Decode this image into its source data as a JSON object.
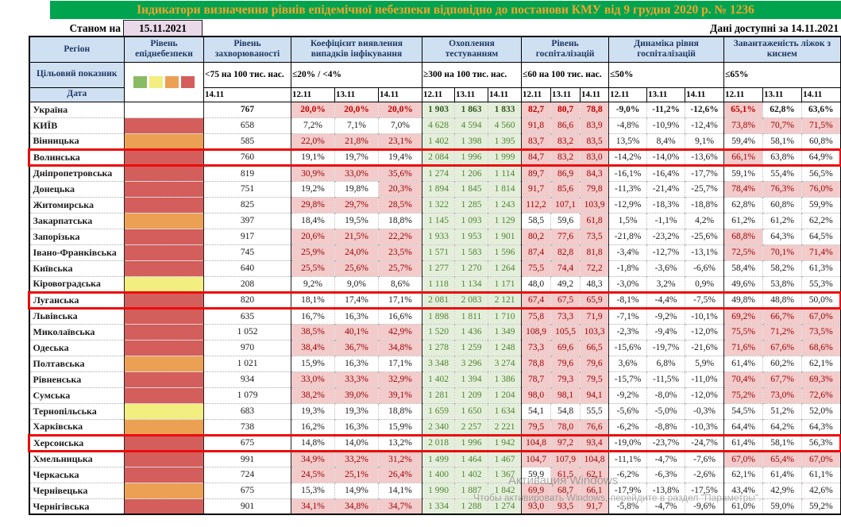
{
  "title": "Індикатори визначення рівнів епідемічної небезпеки відповідно до постанови КМУ від 9 грудня 2020 р. № 1236",
  "as_of": {
    "label": "Станом на",
    "date": "15.11.2021"
  },
  "data_available": "Дані доступні за 14.11.2021",
  "header": {
    "region": "Регіон",
    "target": "Цільовий показник",
    "date": "Дата",
    "danger": "Рівень епіднебезпеки",
    "groups": [
      {
        "key": "inc",
        "name": "Рівень захворюваності",
        "target": "<75 на 100 тис. нас.",
        "dates": [
          "14.11"
        ]
      },
      {
        "key": "det",
        "name": "Коефіцієнт виявлення випадків інфікування",
        "target": "≤20% / <4%",
        "dates": [
          "12.11",
          "13.11",
          "14.11"
        ]
      },
      {
        "key": "test",
        "name": "Охоплення тестуванням",
        "target": "≥300 на 100 тис. нас.",
        "dates": [
          "12.11",
          "13.11",
          "14.11"
        ]
      },
      {
        "key": "hosp",
        "name": "Рівень госпіталізацій",
        "target": "≤60 на 100 тис. нас.",
        "dates": [
          "12.11",
          "13.11",
          "14.11"
        ]
      },
      {
        "key": "dyn",
        "name": "Динаміка рівня госпіталізацій",
        "target": "≤50%",
        "dates": [
          "12.11",
          "13.11",
          "14.11"
        ]
      },
      {
        "key": "oxy",
        "name": "Завантаженість ліжок з киснем",
        "target": "≤65%",
        "dates": [
          "12.11",
          "13.11",
          "14.11"
        ]
      }
    ]
  },
  "legend": {
    "order": [
      "green",
      "yellow",
      "orange",
      "red"
    ],
    "colors": {
      "green": "#8ABB64",
      "yellow": "#F2EE7F",
      "orange": "#ECA054",
      "red": "#D45E5C",
      "none": "transparent"
    }
  },
  "regions": [
    {
      "name": "Україна",
      "level": "none",
      "bold": true,
      "hl": false,
      "inc": "767",
      "det": [
        "20,0%",
        "20,0%",
        "20,0%"
      ],
      "detA": [
        1,
        1,
        1
      ],
      "test": [
        "1 903",
        "1 863",
        "1 833"
      ],
      "hosp": [
        "82,7",
        "80,7",
        "78,8"
      ],
      "hospA": [
        1,
        1,
        1
      ],
      "dyn": [
        "-9,0%",
        "-11,2%",
        "-12,6%"
      ],
      "oxy": [
        "65,1%",
        "62,8%",
        "63,6%"
      ],
      "oxyA": [
        1,
        0,
        0
      ]
    },
    {
      "name": "КИЇВ",
      "level": "red",
      "bold": false,
      "hl": false,
      "inc": "658",
      "det": [
        "7,2%",
        "7,1%",
        "7,0%"
      ],
      "detA": [
        0,
        0,
        0
      ],
      "test": [
        "4 628",
        "4 594",
        "4 560"
      ],
      "hosp": [
        "91,8",
        "86,6",
        "83,9"
      ],
      "hospA": [
        1,
        1,
        1
      ],
      "dyn": [
        "-4,8%",
        "-10,9%",
        "-12,4%"
      ],
      "oxy": [
        "73,8%",
        "70,7%",
        "71,5%"
      ],
      "oxyA": [
        1,
        1,
        1
      ]
    },
    {
      "name": "Вінницька",
      "level": "orange",
      "bold": false,
      "hl": false,
      "inc": "585",
      "det": [
        "22,0%",
        "21,8%",
        "23,1%"
      ],
      "detA": [
        1,
        1,
        1
      ],
      "test": [
        "1 402",
        "1 398",
        "1 395"
      ],
      "hosp": [
        "83,7",
        "83,2",
        "83,5"
      ],
      "hospA": [
        1,
        1,
        1
      ],
      "dyn": [
        "13,5%",
        "8,4%",
        "9,1%"
      ],
      "oxy": [
        "59,4%",
        "58,1%",
        "60,8%"
      ],
      "oxyA": [
        0,
        0,
        0
      ]
    },
    {
      "name": "Волинська",
      "level": "red",
      "bold": false,
      "hl": true,
      "inc": "760",
      "det": [
        "19,1%",
        "19,7%",
        "19,4%"
      ],
      "detA": [
        0,
        0,
        0
      ],
      "test": [
        "2 084",
        "1 996",
        "1 999"
      ],
      "hosp": [
        "84,7",
        "83,2",
        "83,0"
      ],
      "hospA": [
        1,
        1,
        1
      ],
      "dyn": [
        "-14,2%",
        "-14,0%",
        "-13,6%"
      ],
      "oxy": [
        "66,1%",
        "63,8%",
        "64,9%"
      ],
      "oxyA": [
        1,
        0,
        0
      ]
    },
    {
      "name": "Дніпропетровська",
      "level": "red",
      "bold": false,
      "hl": false,
      "inc": "819",
      "det": [
        "30,9%",
        "33,0%",
        "35,6%"
      ],
      "detA": [
        1,
        1,
        1
      ],
      "test": [
        "1 274",
        "1 206",
        "1 114"
      ],
      "hosp": [
        "89,7",
        "86,9",
        "84,3"
      ],
      "hospA": [
        1,
        1,
        1
      ],
      "dyn": [
        "-16,1%",
        "-16,4%",
        "-17,7%"
      ],
      "oxy": [
        "59,1%",
        "55,4%",
        "56,5%"
      ],
      "oxyA": [
        0,
        0,
        0
      ]
    },
    {
      "name": "Донецька",
      "level": "red",
      "bold": false,
      "hl": false,
      "inc": "751",
      "det": [
        "19,2%",
        "19,8%",
        "20,3%"
      ],
      "detA": [
        0,
        0,
        1
      ],
      "test": [
        "1 894",
        "1 845",
        "1 814"
      ],
      "hosp": [
        "91,7",
        "85,6",
        "79,8"
      ],
      "hospA": [
        1,
        1,
        1
      ],
      "dyn": [
        "-11,3%",
        "-21,4%",
        "-25,7%"
      ],
      "oxy": [
        "78,4%",
        "76,3%",
        "76,0%"
      ],
      "oxyA": [
        1,
        1,
        1
      ]
    },
    {
      "name": "Житомирська",
      "level": "red",
      "bold": false,
      "hl": false,
      "inc": "825",
      "det": [
        "29,8%",
        "29,7%",
        "28,5%"
      ],
      "detA": [
        1,
        1,
        1
      ],
      "test": [
        "1 322",
        "1 285",
        "1 243"
      ],
      "hosp": [
        "112,2",
        "107,1",
        "103,9"
      ],
      "hospA": [
        1,
        1,
        1
      ],
      "dyn": [
        "-12,9%",
        "-18,3%",
        "-18,8%"
      ],
      "oxy": [
        "62,8%",
        "60,8%",
        "59,9%"
      ],
      "oxyA": [
        0,
        0,
        0
      ]
    },
    {
      "name": "Закарпатська",
      "level": "orange",
      "bold": false,
      "hl": false,
      "inc": "397",
      "det": [
        "18,4%",
        "19,5%",
        "18,8%"
      ],
      "detA": [
        0,
        0,
        0
      ],
      "test": [
        "1 145",
        "1 093",
        "1 129"
      ],
      "hosp": [
        "58,5",
        "59,6",
        "61,8"
      ],
      "hospA": [
        0,
        0,
        1
      ],
      "dyn": [
        "1,5%",
        "-1,1%",
        "4,2%"
      ],
      "oxy": [
        "61,2%",
        "61,2%",
        "62,2%"
      ],
      "oxyA": [
        0,
        0,
        0
      ]
    },
    {
      "name": "Запорізька",
      "level": "red",
      "bold": false,
      "hl": false,
      "inc": "917",
      "det": [
        "20,6%",
        "21,5%",
        "22,2%"
      ],
      "detA": [
        1,
        1,
        1
      ],
      "test": [
        "1 933",
        "1 953",
        "1 901"
      ],
      "hosp": [
        "80,2",
        "77,6",
        "73,5"
      ],
      "hospA": [
        1,
        1,
        1
      ],
      "dyn": [
        "-21,8%",
        "-23,2%",
        "-25,6%"
      ],
      "oxy": [
        "68,8%",
        "64,3%",
        "64,5%"
      ],
      "oxyA": [
        1,
        0,
        0
      ]
    },
    {
      "name": "Івано-Франківська",
      "level": "red",
      "bold": false,
      "hl": false,
      "inc": "745",
      "det": [
        "25,9%",
        "24,0%",
        "23,5%"
      ],
      "detA": [
        1,
        1,
        1
      ],
      "test": [
        "1 571",
        "1 583",
        "1 596"
      ],
      "hosp": [
        "87,4",
        "82,8",
        "81,8"
      ],
      "hospA": [
        1,
        1,
        1
      ],
      "dyn": [
        "-3,4%",
        "-12,7%",
        "-13,1%"
      ],
      "oxy": [
        "72,5%",
        "70,1%",
        "71,4%"
      ],
      "oxyA": [
        1,
        1,
        1
      ]
    },
    {
      "name": "Київська",
      "level": "red",
      "bold": false,
      "hl": false,
      "inc": "640",
      "det": [
        "25,5%",
        "25,6%",
        "25,7%"
      ],
      "detA": [
        1,
        1,
        1
      ],
      "test": [
        "1 277",
        "1 270",
        "1 264"
      ],
      "hosp": [
        "75,5",
        "74,4",
        "72,2"
      ],
      "hospA": [
        1,
        1,
        1
      ],
      "dyn": [
        "-1,8%",
        "-3,6%",
        "-6,6%"
      ],
      "oxy": [
        "58,4%",
        "58,2%",
        "61,3%"
      ],
      "oxyA": [
        0,
        0,
        0
      ]
    },
    {
      "name": "Кіровоградська",
      "level": "yellow",
      "bold": false,
      "hl": false,
      "inc": "208",
      "det": [
        "9,2%",
        "9,0%",
        "8,6%"
      ],
      "detA": [
        0,
        0,
        0
      ],
      "test": [
        "1 118",
        "1 134",
        "1 171"
      ],
      "hosp": [
        "48,0",
        "49,2",
        "48,3"
      ],
      "hospA": [
        0,
        0,
        0
      ],
      "dyn": [
        "-3,0%",
        "3,2%",
        "0,9%"
      ],
      "oxy": [
        "49,6%",
        "53,8%",
        "55,3%"
      ],
      "oxyA": [
        0,
        0,
        0
      ]
    },
    {
      "name": "Луганська",
      "level": "red",
      "bold": false,
      "hl": true,
      "inc": "820",
      "det": [
        "18,1%",
        "17,4%",
        "17,1%"
      ],
      "detA": [
        0,
        0,
        0
      ],
      "test": [
        "2 081",
        "2 083",
        "2 121"
      ],
      "hosp": [
        "67,4",
        "67,5",
        "65,9"
      ],
      "hospA": [
        1,
        1,
        1
      ],
      "dyn": [
        "-8,1%",
        "-4,4%",
        "-7,5%"
      ],
      "oxy": [
        "49,8%",
        "48,8%",
        "50,0%"
      ],
      "oxyA": [
        0,
        0,
        0
      ]
    },
    {
      "name": "Львівська",
      "level": "red",
      "bold": false,
      "hl": false,
      "inc": "635",
      "det": [
        "16,7%",
        "16,3%",
        "16,6%"
      ],
      "detA": [
        0,
        0,
        0
      ],
      "test": [
        "1 898",
        "1 811",
        "1 710"
      ],
      "hosp": [
        "75,8",
        "73,3",
        "71,9"
      ],
      "hospA": [
        1,
        1,
        1
      ],
      "dyn": [
        "-7,1%",
        "-9,2%",
        "-10,1%"
      ],
      "oxy": [
        "69,2%",
        "66,7%",
        "67,0%"
      ],
      "oxyA": [
        1,
        1,
        1
      ]
    },
    {
      "name": "Миколаївська",
      "level": "red",
      "bold": false,
      "hl": false,
      "inc": "1 052",
      "det": [
        "38,5%",
        "40,1%",
        "42,9%"
      ],
      "detA": [
        1,
        1,
        1
      ],
      "test": [
        "1 520",
        "1 436",
        "1 349"
      ],
      "hosp": [
        "108,9",
        "105,5",
        "103,3"
      ],
      "hospA": [
        1,
        1,
        1
      ],
      "dyn": [
        "-2,3%",
        "-9,4%",
        "-12,0%"
      ],
      "oxy": [
        "75,5%",
        "71,2%",
        "73,5%"
      ],
      "oxyA": [
        1,
        1,
        1
      ]
    },
    {
      "name": "Одеська",
      "level": "red",
      "bold": false,
      "hl": false,
      "inc": "970",
      "det": [
        "38,4%",
        "36,7%",
        "34,8%"
      ],
      "detA": [
        1,
        1,
        1
      ],
      "test": [
        "1 278",
        "1 259",
        "1 248"
      ],
      "hosp": [
        "73,3",
        "69,6",
        "66,5"
      ],
      "hospA": [
        1,
        1,
        1
      ],
      "dyn": [
        "-15,6%",
        "-19,7%",
        "-21,6%"
      ],
      "oxy": [
        "71,6%",
        "67,6%",
        "68,6%"
      ],
      "oxyA": [
        1,
        1,
        1
      ]
    },
    {
      "name": "Полтавська",
      "level": "orange",
      "bold": false,
      "hl": false,
      "inc": "1 021",
      "det": [
        "15,9%",
        "16,3%",
        "17,1%"
      ],
      "detA": [
        0,
        0,
        0
      ],
      "test": [
        "3 348",
        "3 296",
        "3 274"
      ],
      "hosp": [
        "78,8",
        "79,6",
        "79,6"
      ],
      "hospA": [
        1,
        1,
        1
      ],
      "dyn": [
        "3,6%",
        "6,8%",
        "5,9%"
      ],
      "oxy": [
        "61,4%",
        "60,2%",
        "62,1%"
      ],
      "oxyA": [
        0,
        0,
        0
      ]
    },
    {
      "name": "Рівненська",
      "level": "red",
      "bold": false,
      "hl": false,
      "inc": "934",
      "det": [
        "33,0%",
        "33,3%",
        "32,9%"
      ],
      "detA": [
        1,
        1,
        1
      ],
      "test": [
        "1 402",
        "1 394",
        "1 386"
      ],
      "hosp": [
        "78,7",
        "79,3",
        "79,5"
      ],
      "hospA": [
        1,
        1,
        1
      ],
      "dyn": [
        "-15,7%",
        "-11,5%",
        "-11,0%"
      ],
      "oxy": [
        "70,4%",
        "67,7%",
        "69,3%"
      ],
      "oxyA": [
        1,
        1,
        1
      ]
    },
    {
      "name": "Сумська",
      "level": "red",
      "bold": false,
      "hl": false,
      "inc": "1 079",
      "det": [
        "38,2%",
        "39,0%",
        "39,1%"
      ],
      "detA": [
        1,
        1,
        1
      ],
      "test": [
        "1 281",
        "1 209",
        "1 204"
      ],
      "hosp": [
        "98,0",
        "98,1",
        "94,1"
      ],
      "hospA": [
        1,
        1,
        1
      ],
      "dyn": [
        "-9,2%",
        "-8,0%",
        "-12,0%"
      ],
      "oxy": [
        "75,2%",
        "73,0%",
        "72,6%"
      ],
      "oxyA": [
        1,
        1,
        1
      ]
    },
    {
      "name": "Тернопільська",
      "level": "yellow",
      "bold": false,
      "hl": false,
      "inc": "683",
      "det": [
        "19,3%",
        "19,3%",
        "18,8%"
      ],
      "detA": [
        0,
        0,
        0
      ],
      "test": [
        "1 659",
        "1 650",
        "1 634"
      ],
      "hosp": [
        "54,1",
        "54,8",
        "55,5"
      ],
      "hospA": [
        0,
        0,
        0
      ],
      "dyn": [
        "-5,6%",
        "-5,0%",
        "-0,3%"
      ],
      "oxy": [
        "54,5%",
        "51,2%",
        "52,0%"
      ],
      "oxyA": [
        0,
        0,
        0
      ]
    },
    {
      "name": "Харківська",
      "level": "orange",
      "bold": false,
      "hl": false,
      "inc": "738",
      "det": [
        "16,2%",
        "16,3%",
        "15,9%"
      ],
      "detA": [
        0,
        0,
        0
      ],
      "test": [
        "2 340",
        "2 257",
        "2 221"
      ],
      "hosp": [
        "79,5",
        "78,0",
        "76,6"
      ],
      "hospA": [
        1,
        1,
        1
      ],
      "dyn": [
        "-6,2%",
        "-8,8%",
        "-10,3%"
      ],
      "oxy": [
        "64,4%",
        "64,2%",
        "64,3%"
      ],
      "oxyA": [
        0,
        0,
        0
      ]
    },
    {
      "name": "Херсонська",
      "level": "red",
      "bold": false,
      "hl": true,
      "inc": "675",
      "det": [
        "14,8%",
        "14,0%",
        "13,2%"
      ],
      "detA": [
        0,
        0,
        0
      ],
      "test": [
        "2 018",
        "1 996",
        "1 942"
      ],
      "hosp": [
        "104,8",
        "97,2",
        "93,4"
      ],
      "hospA": [
        1,
        1,
        1
      ],
      "dyn": [
        "-19,0%",
        "-23,7%",
        "-24,7%"
      ],
      "oxy": [
        "61,4%",
        "58,1%",
        "56,3%"
      ],
      "oxyA": [
        0,
        0,
        0
      ]
    },
    {
      "name": "Хмельницька",
      "level": "red",
      "bold": false,
      "hl": false,
      "inc": "991",
      "det": [
        "34,9%",
        "33,2%",
        "31,2%"
      ],
      "detA": [
        1,
        1,
        1
      ],
      "test": [
        "1 499",
        "1 464",
        "1 467"
      ],
      "hosp": [
        "104,7",
        "107,9",
        "104,8"
      ],
      "hospA": [
        1,
        1,
        1
      ],
      "dyn": [
        "-11,1%",
        "-4,7%",
        "-7,6%"
      ],
      "oxy": [
        "67,0%",
        "65,4%",
        "67,0%"
      ],
      "oxyA": [
        1,
        1,
        1
      ]
    },
    {
      "name": "Черкаська",
      "level": "red",
      "bold": false,
      "hl": false,
      "inc": "724",
      "det": [
        "24,5%",
        "25,1%",
        "26,4%"
      ],
      "detA": [
        1,
        1,
        1
      ],
      "test": [
        "1 400",
        "1 402",
        "1 367"
      ],
      "hosp": [
        "59,9",
        "61,5",
        "62,1"
      ],
      "hospA": [
        0,
        1,
        1
      ],
      "dyn": [
        "-6,2%",
        "-6,3%",
        "-2,6%"
      ],
      "oxy": [
        "62,1%",
        "61,4%",
        "61,1%"
      ],
      "oxyA": [
        0,
        0,
        0
      ]
    },
    {
      "name": "Чернівецька",
      "level": "orange",
      "bold": false,
      "hl": false,
      "inc": "675",
      "det": [
        "15,3%",
        "14,9%",
        "14,1%"
      ],
      "detA": [
        0,
        0,
        0
      ],
      "test": [
        "1 990",
        "1 887",
        "1 842"
      ],
      "hosp": [
        "69,9",
        "68,7",
        "66,1"
      ],
      "hospA": [
        1,
        1,
        1
      ],
      "dyn": [
        "-17,9%",
        "-13,8%",
        "-17,5%"
      ],
      "oxy": [
        "43,4%",
        "42,9%",
        "42,6%"
      ],
      "oxyA": [
        0,
        0,
        0
      ]
    },
    {
      "name": "Чернігівська",
      "level": "red",
      "bold": false,
      "hl": false,
      "inc": "901",
      "det": [
        "34,1%",
        "34,8%",
        "34,7%"
      ],
      "detA": [
        1,
        1,
        1
      ],
      "test": [
        "1 334",
        "1 288",
        "1 274"
      ],
      "hosp": [
        "93,0",
        "93,5",
        "91,7"
      ],
      "hospA": [
        1,
        1,
        1
      ],
      "dyn": [
        "-5,8%",
        "-4,7%",
        "-9,6%"
      ],
      "oxy": [
        "61,0%",
        "59,0%",
        "59,2%"
      ],
      "oxyA": [
        0,
        0,
        0
      ]
    }
  ],
  "watermark": {
    "line1": "Активация Windows",
    "line2": "Чтобы активировать Windows, перейдите в раздел \"Параметры\"."
  }
}
